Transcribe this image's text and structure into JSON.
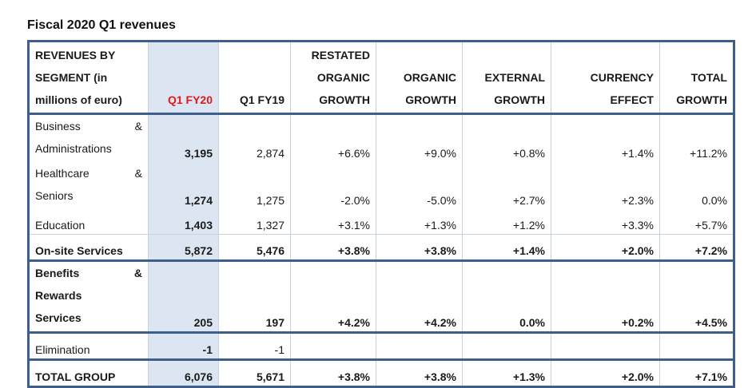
{
  "title": "Fiscal 2020 Q1 revenues",
  "header": {
    "segment_lines": [
      "REVENUES BY",
      "SEGMENT (in",
      "millions of euro)"
    ],
    "q1fy20": "Q1 FY20",
    "q1fy19": "Q1 FY19",
    "restated_lines": [
      "RESTATED",
      "ORGANIC",
      "GROWTH"
    ],
    "organic_lines": [
      "ORGANIC",
      "GROWTH"
    ],
    "external_lines": [
      "EXTERNAL",
      "GROWTH"
    ],
    "currency_lines": [
      "CURRENCY",
      "EFFECT"
    ],
    "total_lines": [
      "TOTAL",
      "GROWTH"
    ]
  },
  "rows": [
    {
      "label_lines": [
        "Business",
        "Administrations"
      ],
      "amp": "&",
      "q1fy20": "3,195",
      "q1fy19": "2,874",
      "restated": "+6.6%",
      "organic": "+9.0%",
      "external": "+0.8%",
      "currency": "+1.4%",
      "total": "+11.2%"
    },
    {
      "label_lines": [
        "Healthcare",
        "Seniors"
      ],
      "amp": "&",
      "q1fy20": "1,274",
      "q1fy19": "1,275",
      "restated": "-2.0%",
      "organic": "-5.0%",
      "external": "+2.7%",
      "currency": "+2.3%",
      "total": "0.0%"
    },
    {
      "label": "Education",
      "q1fy20": "1,403",
      "q1fy19": "1,327",
      "restated": "+3.1%",
      "organic": "+1.3%",
      "external": "+1.2%",
      "currency": "+3.3%",
      "total": "+5.7%"
    },
    {
      "label": "On-site Services",
      "q1fy20": "5,872",
      "q1fy19": "5,476",
      "restated": "+3.8%",
      "organic": "+3.8%",
      "external": "+1.4%",
      "currency": "+2.0%",
      "total": "+7.2%"
    },
    {
      "label_lines": [
        "Benefits",
        "Rewards",
        "Services"
      ],
      "amp": "&",
      "q1fy20": "205",
      "q1fy19": "197",
      "restated": "+4.2%",
      "organic": "+4.2%",
      "external": "0.0%",
      "currency": "+0.2%",
      "total": "+4.5%"
    },
    {
      "label": "Elimination",
      "q1fy20": "-1",
      "q1fy19": "-1",
      "restated": "",
      "organic": "",
      "external": "",
      "currency": "",
      "total": ""
    },
    {
      "label": "TOTAL GROUP",
      "q1fy20": "6,076",
      "q1fy19": "5,671",
      "restated": "+3.8%",
      "organic": "+3.8%",
      "external": "+1.3%",
      "currency": "+2.0%",
      "total": "+7.1%"
    }
  ],
  "colors": {
    "border": "#3e5f8a",
    "highlight_bg": "#dce6f2",
    "highlight_text": "#e01818"
  }
}
